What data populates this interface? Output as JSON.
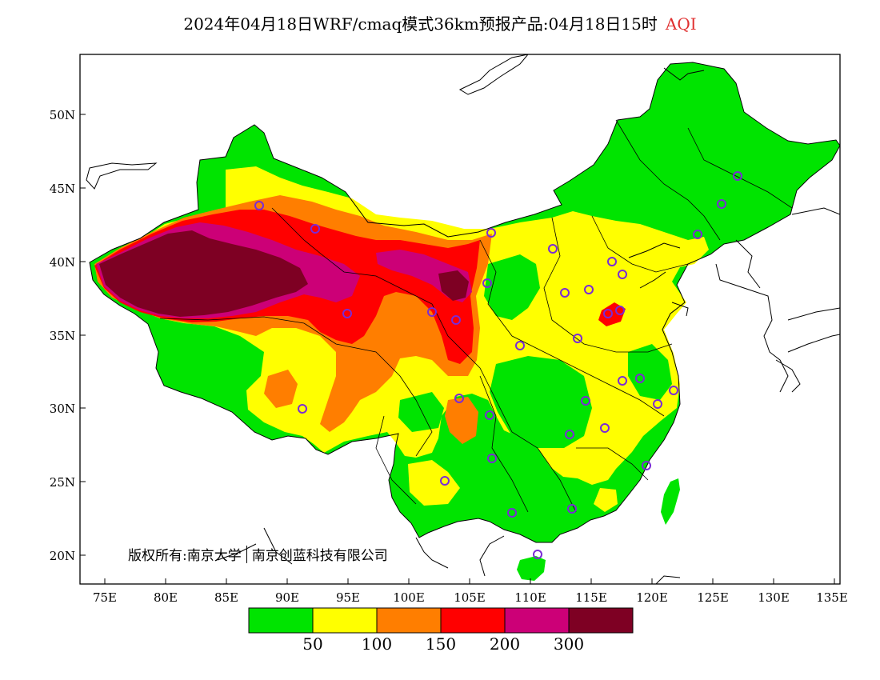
{
  "title": {
    "text": "2024年04月18日WRF/cmaq模式36km预报产品:04月18日15时",
    "variable": "AQI",
    "variable_color": "#e03030"
  },
  "axes": {
    "lat_labels": [
      "50N",
      "45N",
      "40N",
      "35N",
      "30N",
      "25N",
      "20N"
    ],
    "lon_labels": [
      "75E",
      "80E",
      "85E",
      "90E",
      "95E",
      "100E",
      "105E",
      "110E",
      "115E",
      "120E",
      "125E",
      "130E",
      "135E"
    ]
  },
  "copyright": {
    "label": "版权所有:",
    "org1": "南京大学",
    "org2": "南京创蓝科技有限公司"
  },
  "legend": {
    "colors": [
      "#00e400",
      "#ffff00",
      "#ff7e00",
      "#ff0000",
      "#cc0077",
      "#7e0023"
    ],
    "thresholds": [
      "50",
      "100",
      "150",
      "200",
      "300"
    ]
  },
  "colors": {
    "good": "#00e400",
    "moderate": "#ffff00",
    "usg": "#ff7e00",
    "unhealthy": "#ff0000",
    "very_unhealthy": "#cc0077",
    "hazardous": "#7e0023",
    "station_marker": "#7a2bd6"
  },
  "map_region": "China",
  "station_markers": 38
}
